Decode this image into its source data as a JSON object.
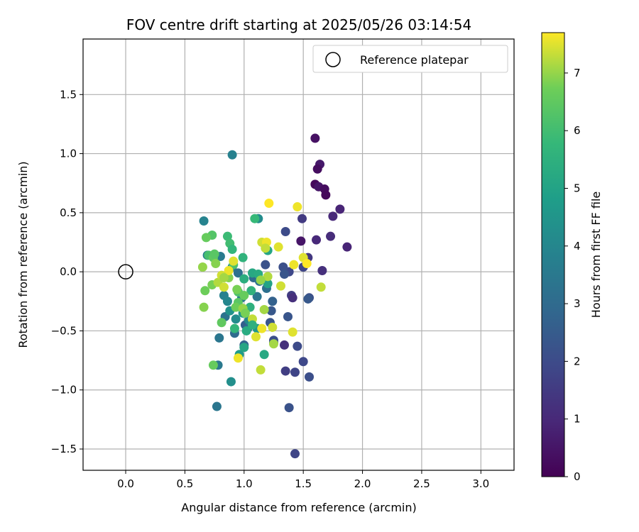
{
  "chart_data": {
    "type": "scatter",
    "title": "FOV centre drift starting at 2025/05/26 03:14:54",
    "xlabel": "Angular distance from reference (arcmin)",
    "ylabel": "Rotation from reference (arcmin)",
    "xlim": [
      -0.36,
      3.28
    ],
    "ylim": [
      -1.68,
      1.97
    ],
    "xticks": [
      0.0,
      0.5,
      1.0,
      1.5,
      2.0,
      2.5,
      3.0
    ],
    "xtick_labels": [
      "0.0",
      "0.5",
      "1.0",
      "1.5",
      "2.0",
      "2.5",
      "3.0"
    ],
    "yticks": [
      -1.5,
      -1.0,
      -0.5,
      0.0,
      0.5,
      1.0,
      1.5
    ],
    "ytick_labels": [
      "−1.5",
      "−1.0",
      "−0.5",
      "0.0",
      "0.5",
      "1.0",
      "1.5"
    ],
    "grid": true,
    "legend": {
      "position": "top-right",
      "entries": [
        "Reference platepar"
      ]
    },
    "reference_point": {
      "x": 0.0,
      "y": 0.0
    },
    "colorbar": {
      "label": "Hours from first FF file",
      "colormap": "viridis",
      "range": [
        0,
        7.7
      ],
      "ticks": [
        0,
        1,
        2,
        3,
        4,
        5,
        6,
        7
      ],
      "tick_labels": [
        "0",
        "1",
        "2",
        "3",
        "4",
        "5",
        "6",
        "7"
      ]
    },
    "series": [
      {
        "points": [
          [
            1.6,
            1.13,
            0.4
          ],
          [
            1.64,
            0.91,
            0.6
          ],
          [
            1.62,
            0.87,
            0.3
          ],
          [
            1.6,
            0.74,
            0.2
          ],
          [
            1.63,
            0.72,
            0.5
          ],
          [
            1.68,
            0.7,
            0.3
          ],
          [
            1.69,
            0.65,
            0.2
          ],
          [
            1.75,
            0.47,
            1.0
          ],
          [
            1.81,
            0.53,
            0.9
          ],
          [
            1.87,
            0.21,
            0.9
          ],
          [
            1.73,
            0.3,
            1.1
          ],
          [
            1.61,
            0.27,
            1.0
          ],
          [
            1.48,
            0.26,
            0.5
          ],
          [
            1.49,
            0.45,
            1.5
          ],
          [
            1.66,
            0.01,
            1.2
          ],
          [
            1.54,
            0.12,
            1.4
          ],
          [
            1.5,
            0.04,
            1.8
          ],
          [
            1.35,
            0.34,
            2.0
          ],
          [
            1.38,
            0.0,
            1.9
          ],
          [
            1.33,
            0.04,
            2.1
          ],
          [
            1.34,
            -0.02,
            2.3
          ],
          [
            1.4,
            -0.2,
            1.6
          ],
          [
            1.41,
            -0.22,
            1.2
          ],
          [
            1.55,
            -0.22,
            2.1
          ],
          [
            1.54,
            -0.23,
            2.4
          ],
          [
            1.37,
            -0.38,
            2.3
          ],
          [
            1.34,
            -0.62,
            1.2
          ],
          [
            1.45,
            -0.63,
            2.0
          ],
          [
            1.5,
            -0.76,
            1.9
          ],
          [
            1.35,
            -0.84,
            1.6
          ],
          [
            1.43,
            -0.85,
            1.8
          ],
          [
            1.55,
            -0.89,
            2.1
          ],
          [
            1.38,
            -1.15,
            2.2
          ],
          [
            1.43,
            -1.54,
            1.8
          ],
          [
            1.18,
            0.06,
            2.2
          ],
          [
            1.23,
            -0.33,
            2.4
          ],
          [
            1.24,
            -0.25,
            2.7
          ],
          [
            1.25,
            -0.6,
            2.5
          ],
          [
            1.25,
            -0.58,
            2.1
          ],
          [
            1.22,
            -0.43,
            2.3
          ],
          [
            1.01,
            -0.45,
            2.6
          ],
          [
            1.03,
            -0.48,
            2.9
          ],
          [
            1.0,
            -0.62,
            2.8
          ],
          [
            0.92,
            -0.52,
            3.0
          ],
          [
            0.84,
            -0.38,
            3.3
          ],
          [
            0.79,
            -0.56,
            3.4
          ],
          [
            0.78,
            -0.79,
            3.5
          ],
          [
            0.77,
            -1.14,
            3.4
          ],
          [
            0.89,
            -0.93,
            4.3
          ],
          [
            0.9,
            0.99,
            3.8
          ],
          [
            0.66,
            0.43,
            3.9
          ],
          [
            0.69,
            0.14,
            3.7
          ],
          [
            0.8,
            0.13,
            3.6
          ],
          [
            0.9,
            0.04,
            3.5
          ],
          [
            0.95,
            -0.01,
            3.2
          ],
          [
            1.08,
            -0.05,
            3.0
          ],
          [
            1.13,
            -0.08,
            3.3
          ],
          [
            1.19,
            -0.14,
            3.2
          ],
          [
            1.11,
            -0.21,
            3.4
          ],
          [
            0.98,
            -0.22,
            3.6
          ],
          [
            0.83,
            -0.2,
            3.8
          ],
          [
            0.86,
            -0.25,
            4.0
          ],
          [
            0.88,
            -0.33,
            4.4
          ],
          [
            0.93,
            -0.4,
            4.2
          ],
          [
            0.99,
            -0.35,
            4.5
          ],
          [
            1.04,
            -0.41,
            4.1
          ],
          [
            1.11,
            -0.48,
            4.6
          ],
          [
            0.96,
            -0.7,
            4.7
          ],
          [
            1.0,
            -0.64,
            5.1
          ],
          [
            1.17,
            -0.7,
            5.2
          ],
          [
            1.12,
            0.45,
            4.2
          ],
          [
            1.09,
            0.45,
            5.8
          ],
          [
            0.86,
            0.3,
            5.9
          ],
          [
            0.88,
            0.24,
            6.0
          ],
          [
            0.9,
            0.19,
            5.7
          ],
          [
            0.73,
            0.31,
            6.3
          ],
          [
            0.68,
            0.29,
            6.6
          ],
          [
            0.7,
            0.14,
            6.1
          ],
          [
            0.74,
            0.12,
            6.5
          ],
          [
            0.76,
            0.07,
            6.9
          ],
          [
            0.73,
            -0.11,
            6.8
          ],
          [
            0.78,
            -0.09,
            7.2
          ],
          [
            0.83,
            -0.13,
            7.4
          ],
          [
            0.87,
            -0.05,
            6.9
          ],
          [
            0.91,
            0.06,
            6.2
          ],
          [
            0.99,
            0.12,
            5.6
          ],
          [
            1.0,
            -0.06,
            5.4
          ],
          [
            1.07,
            -0.01,
            5.2
          ],
          [
            1.12,
            -0.02,
            5.3
          ],
          [
            1.2,
            0.18,
            5.1
          ],
          [
            1.2,
            -0.1,
            5.0
          ],
          [
            1.05,
            -0.3,
            5.5
          ],
          [
            1.06,
            -0.16,
            5.6
          ],
          [
            0.95,
            -0.17,
            6.2
          ],
          [
            1.0,
            -0.2,
            6.6
          ],
          [
            0.95,
            -0.26,
            6.4
          ],
          [
            0.93,
            -0.3,
            6.7
          ],
          [
            0.99,
            -0.31,
            7.0
          ],
          [
            1.01,
            -0.35,
            6.8
          ],
          [
            1.17,
            -0.32,
            7.1
          ],
          [
            1.07,
            -0.4,
            7.3
          ],
          [
            1.1,
            -0.55,
            7.5
          ],
          [
            1.15,
            -0.48,
            7.6
          ],
          [
            1.24,
            -0.47,
            7.4
          ],
          [
            1.25,
            -0.61,
            7.1
          ],
          [
            1.14,
            -0.83,
            7.3
          ],
          [
            0.95,
            -0.73,
            7.6
          ],
          [
            0.81,
            -0.43,
            6.5
          ],
          [
            0.67,
            -0.16,
            6.7
          ],
          [
            0.66,
            -0.3,
            6.9
          ],
          [
            0.74,
            -0.79,
            6.6
          ],
          [
            0.92,
            -0.48,
            5.7
          ],
          [
            1.02,
            -0.5,
            5.3
          ],
          [
            1.07,
            -0.45,
            5.5
          ],
          [
            1.21,
            0.58,
            7.7
          ],
          [
            1.15,
            0.25,
            7.4
          ],
          [
            1.19,
            0.25,
            7.6
          ],
          [
            1.18,
            0.2,
            7.3
          ],
          [
            1.29,
            0.21,
            7.5
          ],
          [
            1.45,
            0.55,
            7.6
          ],
          [
            1.5,
            0.12,
            7.5
          ],
          [
            1.53,
            0.07,
            7.7
          ],
          [
            1.42,
            0.06,
            7.6
          ],
          [
            1.31,
            -0.12,
            7.4
          ],
          [
            1.2,
            -0.04,
            7.2
          ],
          [
            1.14,
            -0.07,
            7.0
          ],
          [
            1.65,
            -0.13,
            7.3
          ],
          [
            1.41,
            -0.51,
            7.5
          ],
          [
            0.91,
            0.09,
            7.5
          ],
          [
            0.87,
            0.01,
            7.6
          ],
          [
            0.81,
            -0.03,
            7.4
          ],
          [
            0.83,
            -0.05,
            7.1
          ],
          [
            0.94,
            -0.15,
            6.8
          ],
          [
            0.75,
            0.15,
            6.4
          ],
          [
            0.65,
            0.04,
            7.0
          ]
        ]
      }
    ]
  }
}
